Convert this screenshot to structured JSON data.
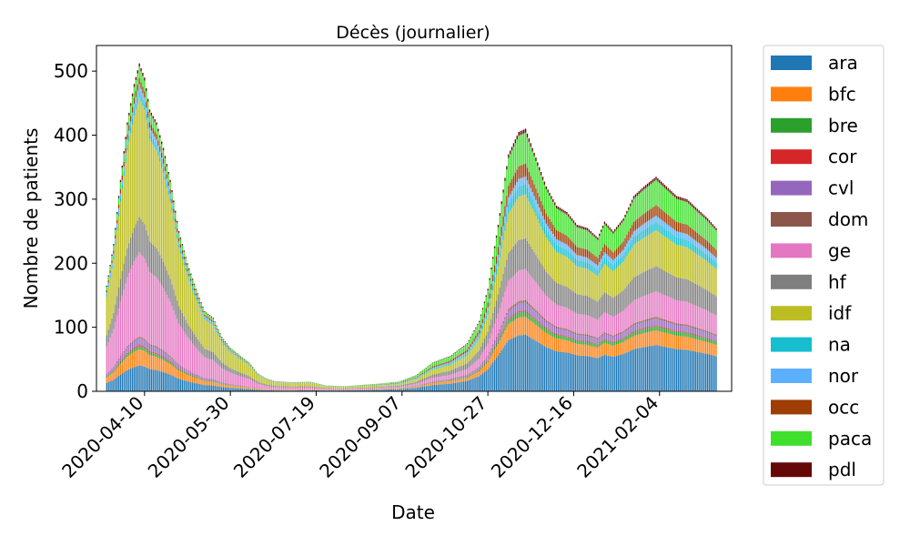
{
  "chart_data": {
    "type": "bar",
    "stacked": true,
    "title": "Décès (journalier)",
    "xlabel": "Date",
    "ylabel": "Nombre de patients",
    "ylim": [
      0,
      540
    ],
    "yticks": [
      0,
      100,
      200,
      300,
      400,
      500
    ],
    "xlim": [
      "2020-03-13",
      "2021-03-18"
    ],
    "xticks": [
      "2020-04-10",
      "2020-05-30",
      "2020-07-19",
      "2020-09-07",
      "2020-10-27",
      "2020-12-16",
      "2021-02-04"
    ],
    "grid": false,
    "legend_position": "outside-right",
    "x_start": "2020-03-19",
    "x_end": "2021-03-09",
    "totals_keypoints": [
      [
        "2020-03-19",
        165
      ],
      [
        "2020-03-23",
        230
      ],
      [
        "2020-03-27",
        330
      ],
      [
        "2020-03-31",
        420
      ],
      [
        "2020-04-04",
        480
      ],
      [
        "2020-04-07",
        512
      ],
      [
        "2020-04-10",
        490
      ],
      [
        "2020-04-13",
        440
      ],
      [
        "2020-04-17",
        420
      ],
      [
        "2020-04-21",
        380
      ],
      [
        "2020-04-25",
        330
      ],
      [
        "2020-04-30",
        250
      ],
      [
        "2020-05-05",
        200
      ],
      [
        "2020-05-10",
        160
      ],
      [
        "2020-05-15",
        125
      ],
      [
        "2020-05-20",
        115
      ],
      [
        "2020-05-25",
        85
      ],
      [
        "2020-05-30",
        68
      ],
      [
        "2020-06-05",
        55
      ],
      [
        "2020-06-10",
        45
      ],
      [
        "2020-06-15",
        28
      ],
      [
        "2020-06-20",
        20
      ],
      [
        "2020-06-25",
        16
      ],
      [
        "2020-07-05",
        14
      ],
      [
        "2020-07-15",
        15
      ],
      [
        "2020-07-25",
        9
      ],
      [
        "2020-08-05",
        8
      ],
      [
        "2020-08-15",
        10
      ],
      [
        "2020-08-25",
        12
      ],
      [
        "2020-09-05",
        15
      ],
      [
        "2020-09-15",
        25
      ],
      [
        "2020-09-25",
        45
      ],
      [
        "2020-10-05",
        55
      ],
      [
        "2020-10-15",
        75
      ],
      [
        "2020-10-22",
        110
      ],
      [
        "2020-10-27",
        160
      ],
      [
        "2020-11-02",
        260
      ],
      [
        "2020-11-08",
        370
      ],
      [
        "2020-11-14",
        405
      ],
      [
        "2020-11-18",
        410
      ],
      [
        "2020-11-24",
        365
      ],
      [
        "2020-11-30",
        320
      ],
      [
        "2020-12-06",
        290
      ],
      [
        "2020-12-12",
        280
      ],
      [
        "2020-12-18",
        260
      ],
      [
        "2020-12-24",
        255
      ],
      [
        "2020-12-30",
        240
      ],
      [
        "2021-01-03",
        265
      ],
      [
        "2021-01-08",
        250
      ],
      [
        "2021-01-14",
        270
      ],
      [
        "2021-01-20",
        305
      ],
      [
        "2021-01-26",
        320
      ],
      [
        "2021-02-02",
        335
      ],
      [
        "2021-02-08",
        320
      ],
      [
        "2021-02-14",
        305
      ],
      [
        "2021-02-20",
        300
      ],
      [
        "2021-02-26",
        285
      ],
      [
        "2021-03-04",
        270
      ],
      [
        "2021-03-09",
        255
      ]
    ],
    "series": [
      {
        "name": "ara",
        "color": "#1f77b4",
        "share_first_wave": 0.08,
        "share_later": 0.22
      },
      {
        "name": "bfc",
        "color": "#ff7f0e",
        "share_first_wave": 0.05,
        "share_later": 0.07
      },
      {
        "name": "bre",
        "color": "#2ca02c",
        "share_first_wave": 0.01,
        "share_later": 0.02
      },
      {
        "name": "cor",
        "color": "#d62728",
        "share_first_wave": 0.005,
        "share_later": 0.005
      },
      {
        "name": "cvl",
        "color": "#9467bd",
        "share_first_wave": 0.02,
        "share_later": 0.03
      },
      {
        "name": "dom",
        "color": "#8c564b",
        "share_first_wave": 0.005,
        "share_later": 0.01
      },
      {
        "name": "ge",
        "color": "#e377c2",
        "share_first_wave": 0.26,
        "share_later": 0.12
      },
      {
        "name": "hf",
        "color": "#7f7f7f",
        "share_first_wave": 0.11,
        "share_later": 0.12
      },
      {
        "name": "idf",
        "color": "#bcbd22",
        "share_first_wave": 0.37,
        "share_later": 0.17
      },
      {
        "name": "na",
        "color": "#17becf",
        "share_first_wave": 0.02,
        "share_later": 0.04
      },
      {
        "name": "nor",
        "color": "#5bb0ff",
        "share_first_wave": 0.02,
        "share_later": 0.03
      },
      {
        "name": "occ",
        "color": "#9e3d04",
        "share_first_wave": 0.02,
        "share_later": 0.05
      },
      {
        "name": "paca",
        "color": "#3fe02c",
        "share_first_wave": 0.035,
        "share_later": 0.12
      },
      {
        "name": "pdl",
        "color": "#640808",
        "share_first_wave": 0.01,
        "share_later": 0.015
      }
    ]
  }
}
